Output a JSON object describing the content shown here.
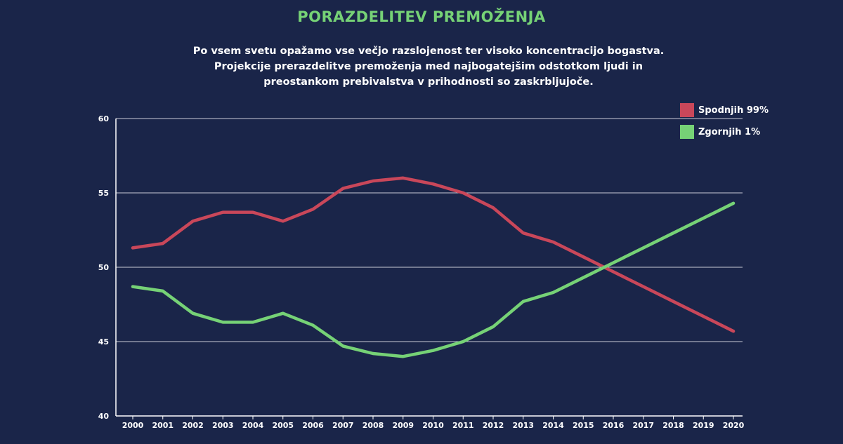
{
  "title": "PORAZDELITEV PREMOŽENJA",
  "subtitle_lines": [
    "Po vsem svetu opažamo vse večjo razslojenost ter visoko koncentracijo bogastva.",
    "Projekcije prerazdelitve premoženja med najbogatejšim odstotkom ljudi in",
    "preostankom prebivalstva v prihodnosti so zaskrbljujoče."
  ],
  "chart_data": {
    "type": "line",
    "categories": [
      "2000",
      "2001",
      "2002",
      "2003",
      "2004",
      "2005",
      "2006",
      "2007",
      "2008",
      "2009",
      "2010",
      "2011",
      "2012",
      "2013",
      "2014",
      "2015",
      "2016",
      "2017",
      "2018",
      "2019",
      "2020"
    ],
    "ylim": [
      40,
      60
    ],
    "yticks": [
      40,
      45,
      50,
      55,
      60
    ],
    "grid": true,
    "legend_position": "top-right",
    "series": [
      {
        "name": "Spodnjih 99%",
        "color": "#c9475a",
        "values": [
          51.3,
          51.6,
          53.1,
          53.7,
          53.7,
          53.1,
          53.9,
          55.3,
          55.8,
          56.0,
          55.6,
          55.0,
          54.0,
          52.3,
          51.7,
          50.7,
          49.7,
          48.7,
          47.7,
          46.7,
          45.7
        ]
      },
      {
        "name": "Zgornjih 1%",
        "color": "#76d276",
        "values": [
          48.7,
          48.4,
          46.9,
          46.3,
          46.3,
          46.9,
          46.1,
          44.7,
          44.2,
          44.0,
          44.4,
          45.0,
          46.0,
          47.7,
          48.3,
          49.3,
          50.3,
          51.3,
          52.3,
          53.3,
          54.3
        ]
      }
    ]
  }
}
